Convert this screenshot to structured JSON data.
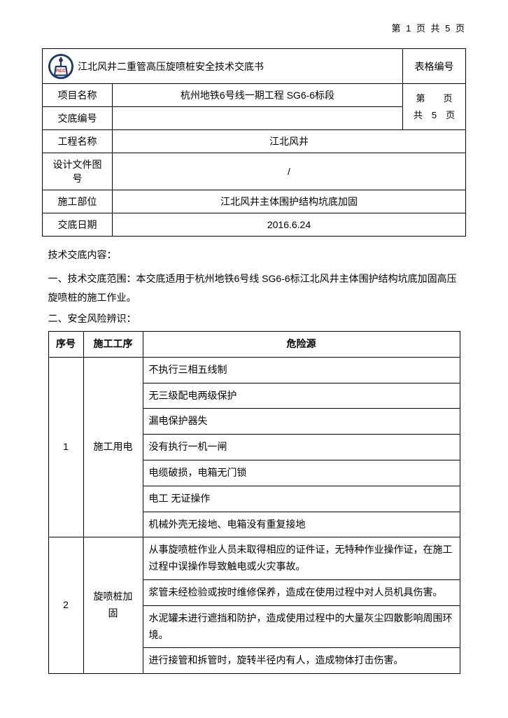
{
  "pageHeader": "第 1 页 共 5 页",
  "docTitle": "江北风井二重管高压旋喷桩安全技术交底书",
  "formNumLabel": "表格编号",
  "rows": {
    "projNameLabel": "项目名称",
    "projName": "杭州地铁6号线一期工程 SG6-6标段",
    "disclosureNumLabel": "交底编号",
    "disclosureNum": "",
    "engNameLabel": "工程名称",
    "engName": "江北风井",
    "designDocLabel": "设计文件图号",
    "designDoc": "/",
    "constrPartLabel": "施工部位",
    "constrPart": "江北风井主体围护结构坑底加固",
    "dateLabel": "交底日期",
    "date": "2016.6.24"
  },
  "pageMarker": {
    "l1": "第　　页",
    "l2": "共　5　页"
  },
  "content": {
    "heading": "技术交底内容：",
    "p1": "一、技术交底范围：本交底适用于杭州地铁6号线 SG6-6标江北风井主体围护结构坑底加固高压旋喷桩的施工作业。",
    "p2": "二、安全风险辨识："
  },
  "riskTable": {
    "headers": {
      "idx": "序号",
      "proc": "施工工序",
      "haz": "危险源"
    },
    "groups": [
      {
        "idx": "1",
        "proc": "施工用电",
        "hazards": [
          "不执行三相五线制",
          "无三级配电两级保护",
          "漏电保护器失",
          "没有执行一机一闸",
          "电缆破损，电箱无门锁",
          "电工 无证操作",
          "机械外壳无接地、电箱没有重复接地"
        ]
      },
      {
        "idx": "2",
        "proc": "旋喷桩加固",
        "hazards": [
          "从事旋喷桩作业人员未取得相应的证件证，无特种作业操作证，在施工过程中误操作导致触电或火灾事故。",
          "浆管未经检验或按时维修保养，造成在使用过程中对人员机具伤害。",
          "水泥罐未进行遮挡和防护，造成使用过程中的大量灰尘四散影响周围环境。",
          "进行接管和拆管时，旋转半径内有人，造成物体打击伤害。"
        ]
      }
    ]
  }
}
